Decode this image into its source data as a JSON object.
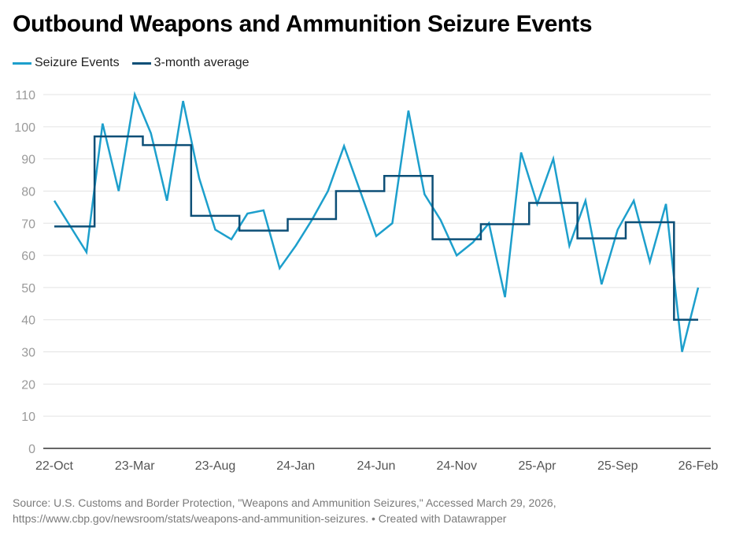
{
  "title": "Outbound Weapons and Ammunition Seizure Events",
  "legend": [
    {
      "label": "Seizure Events",
      "color": "#1d9fcc"
    },
    {
      "label": "3-month average",
      "color": "#0d4f77"
    }
  ],
  "footer": {
    "line1": "Source: U.S. Customs and Border Protection, \"Weapons and Ammunition Seizures,\" Accessed March 29, 2026,",
    "line2": "https://www.cbp.gov/newsroom/stats/weapons-and-ammunition-seizures. • Created with Datawrapper"
  },
  "chart_data": {
    "type": "line",
    "title": "Outbound Weapons and Ammunition Seizure Events",
    "xlabel": "",
    "ylabel": "",
    "ylim": [
      0,
      110
    ],
    "yticks": [
      0,
      10,
      20,
      30,
      40,
      50,
      60,
      70,
      80,
      90,
      100,
      110
    ],
    "grid": true,
    "legend_position": "top-left",
    "x": [
      "22-Oct",
      "22-Nov",
      "22-Dec",
      "23-Jan",
      "23-Feb",
      "23-Mar",
      "23-Apr",
      "23-May",
      "23-Jun",
      "23-Jul",
      "23-Aug",
      "23-Sep",
      "23-Oct",
      "23-Nov",
      "23-Dec",
      "24-Jan",
      "24-Feb",
      "24-Mar",
      "24-Apr",
      "24-May",
      "24-Jun",
      "24-Jul",
      "24-Aug",
      "24-Sep",
      "24-Oct",
      "24-Nov",
      "24-Dec",
      "25-Jan",
      "25-Feb",
      "25-Mar",
      "25-Apr",
      "25-May",
      "25-Jun",
      "25-Jul",
      "25-Aug",
      "25-Sep",
      "25-Oct",
      "25-Nov",
      "25-Dec",
      "26-Jan",
      "26-Feb"
    ],
    "xtick_labels": [
      "22-Oct",
      "23-Mar",
      "23-Aug",
      "24-Jan",
      "24-Jun",
      "24-Nov",
      "25-Apr",
      "25-Sep",
      "26-Feb"
    ],
    "series": [
      {
        "name": "Seizure Events",
        "color": "#1d9fcc",
        "style": "line",
        "values": [
          77,
          69,
          61,
          101,
          80,
          110,
          98,
          77,
          108,
          84,
          68,
          65,
          73,
          74,
          56,
          63,
          71,
          80,
          94,
          80,
          66,
          70,
          105,
          79,
          71,
          60,
          64,
          70,
          47,
          92,
          76,
          90,
          63,
          77,
          51,
          68,
          77,
          58,
          76,
          30,
          50
        ]
      },
      {
        "name": "3-month average",
        "color": "#0d4f77",
        "style": "step",
        "segments": [
          {
            "start": "22-Oct",
            "end": "22-Dec",
            "value": 69
          },
          {
            "start": "23-Jan",
            "end": "23-Mar",
            "value": 97
          },
          {
            "start": "23-Apr",
            "end": "23-Jun",
            "value": 94.3
          },
          {
            "start": "23-Jul",
            "end": "23-Sep",
            "value": 72.3
          },
          {
            "start": "23-Oct",
            "end": "23-Dec",
            "value": 67.7
          },
          {
            "start": "24-Jan",
            "end": "24-Mar",
            "value": 71.3
          },
          {
            "start": "24-Apr",
            "end": "24-Jun",
            "value": 80
          },
          {
            "start": "24-Jul",
            "end": "24-Sep",
            "value": 84.7
          },
          {
            "start": "24-Oct",
            "end": "24-Dec",
            "value": 65
          },
          {
            "start": "25-Jan",
            "end": "25-Mar",
            "value": 69.7
          },
          {
            "start": "25-Apr",
            "end": "25-Jun",
            "value": 76.3
          },
          {
            "start": "25-Jul",
            "end": "25-Sep",
            "value": 65.3
          },
          {
            "start": "25-Oct",
            "end": "25-Dec",
            "value": 70.3
          },
          {
            "start": "26-Jan",
            "end": "26-Feb",
            "value": 40
          }
        ]
      }
    ]
  }
}
